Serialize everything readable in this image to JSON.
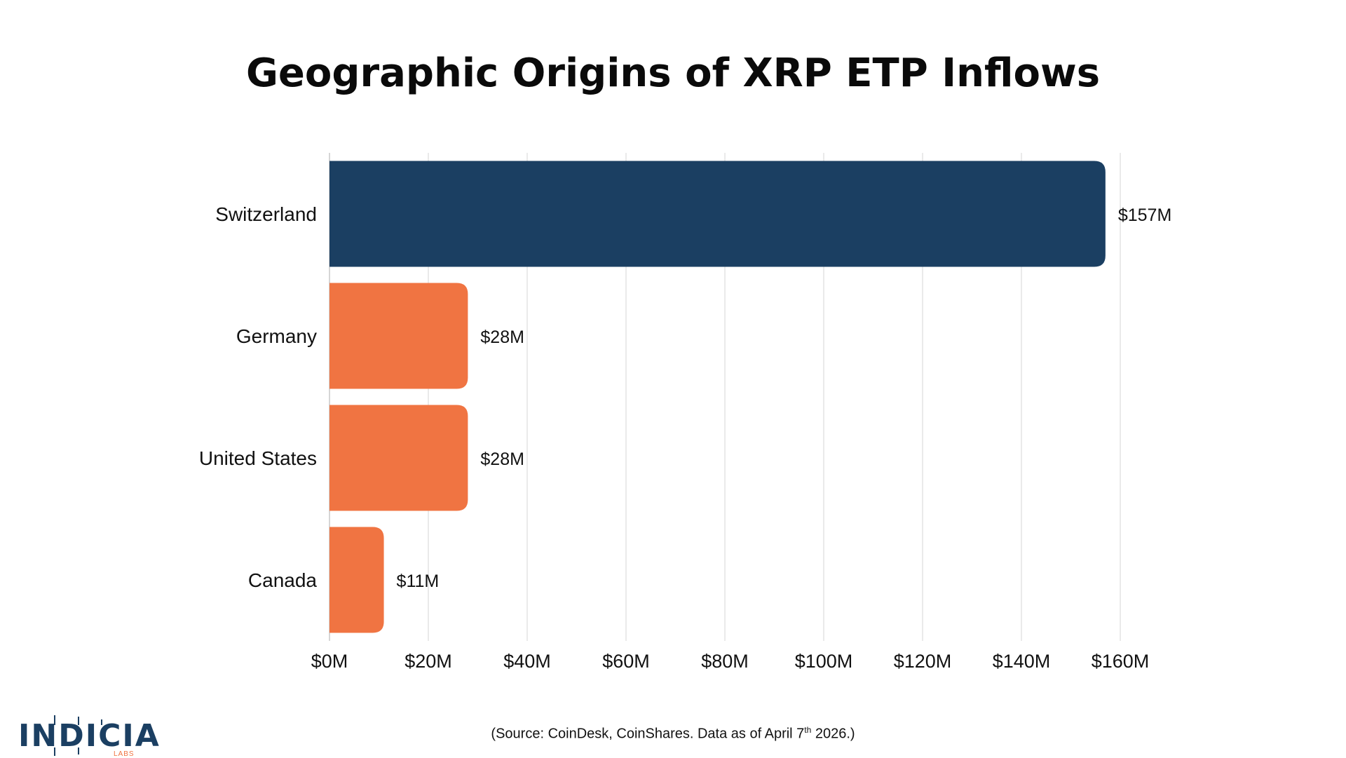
{
  "chart_data": {
    "type": "bar",
    "orientation": "horizontal",
    "title": "Geographic Origins of XRP ETP Inflows",
    "categories": [
      "Switzerland",
      "Germany",
      "United States",
      "Canada"
    ],
    "values": [
      157,
      28,
      28,
      11
    ],
    "data_labels": [
      "$157M",
      "$28M",
      "$28M",
      "$11M"
    ],
    "bar_colors": [
      "#1b3f62",
      "#f07442",
      "#f07442",
      "#f07442"
    ],
    "xlim": [
      0,
      160
    ],
    "x_ticks": [
      0,
      20,
      40,
      60,
      80,
      100,
      120,
      140,
      160
    ],
    "x_tick_labels": [
      "$0M",
      "$20M",
      "$40M",
      "$60M",
      "$80M",
      "$100M",
      "$120M",
      "$140M",
      "$160M"
    ],
    "xlabel": "",
    "ylabel": "",
    "grid": "vertical",
    "legend": "none"
  },
  "source": {
    "prefix": "(Source: CoinDesk, CoinShares. Data as of April 7",
    "superscript": "th",
    "suffix": " 2026.)"
  },
  "logo": {
    "name": "INDICIA",
    "sub": "LABS"
  },
  "colors": {
    "navy": "#1b3f62",
    "orange": "#f07442",
    "grid": "#dcdcdc"
  }
}
